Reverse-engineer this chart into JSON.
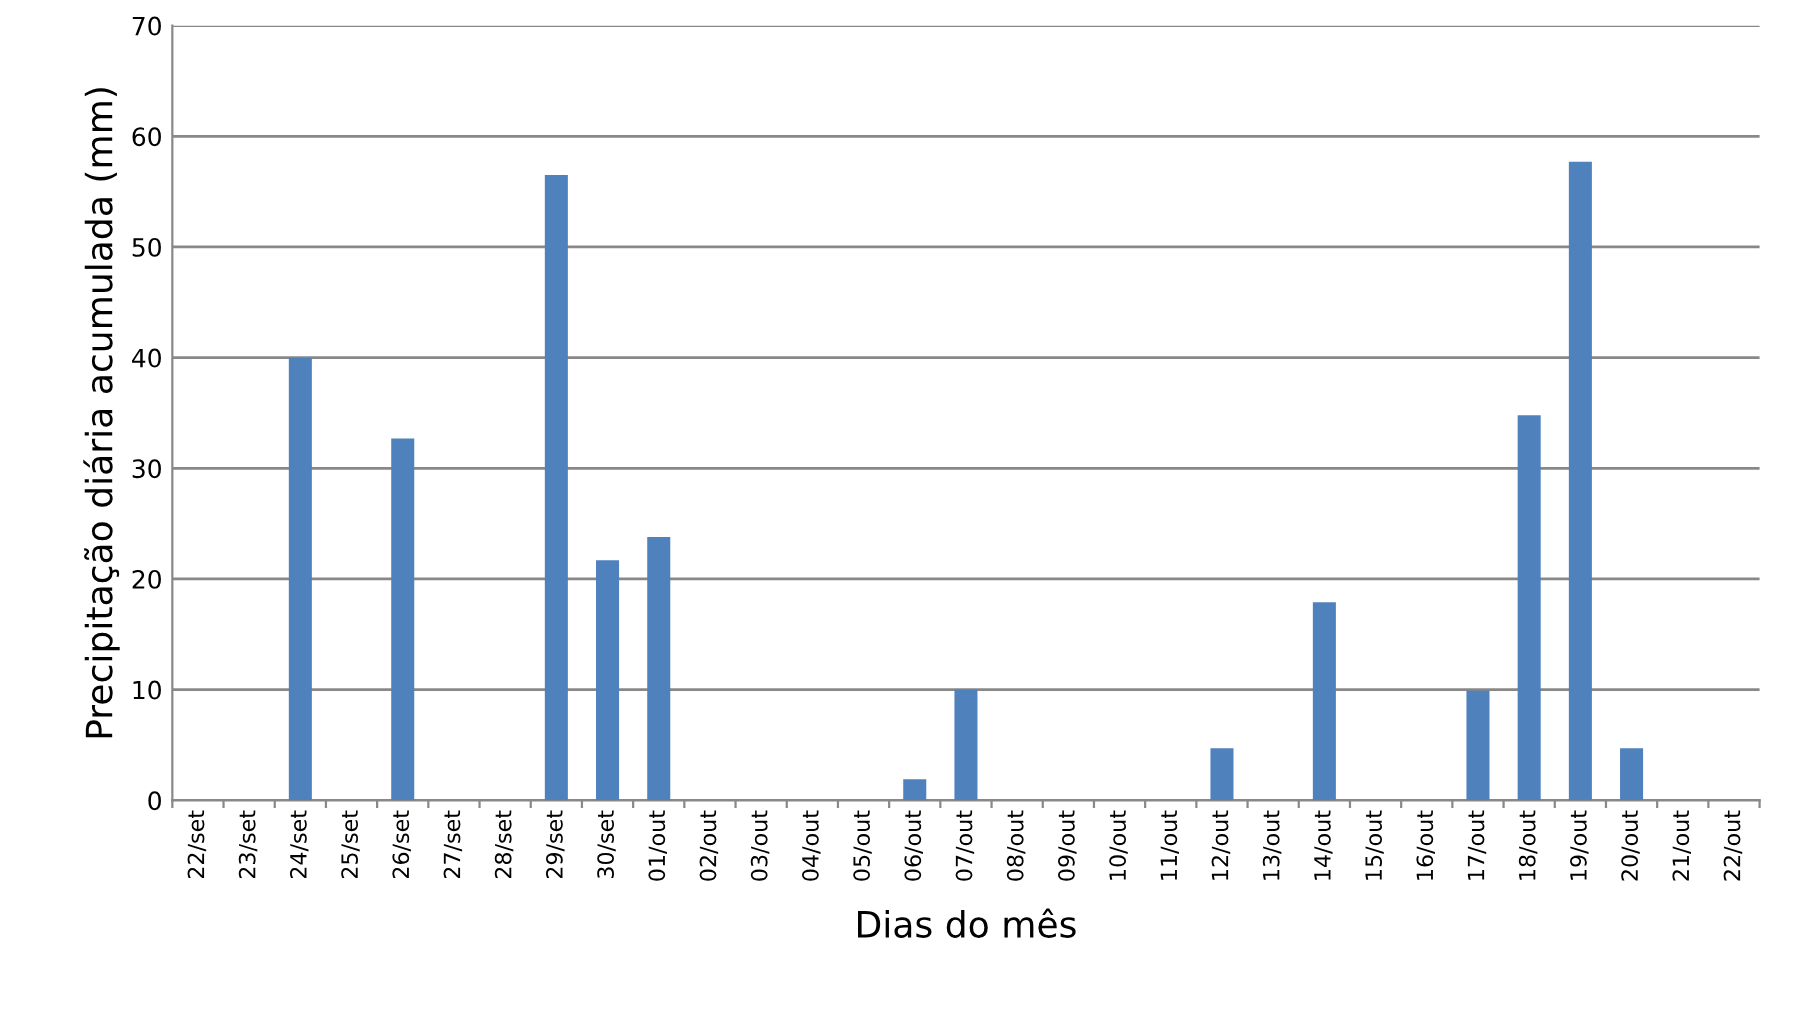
{
  "chart_data": {
    "type": "bar",
    "xlabel": "Dias do mês",
    "ylabel": "Precipitação diária acumulada (mm)",
    "categories": [
      "22/set",
      "23/set",
      "24/set",
      "25/set",
      "26/set",
      "27/set",
      "28/set",
      "29/set",
      "30/set",
      "01/out",
      "02/out",
      "03/out",
      "04/out",
      "05/out",
      "06/out",
      "07/out",
      "08/out",
      "09/out",
      "10/out",
      "11/out",
      "12/out",
      "13/out",
      "14/out",
      "15/out",
      "16/out",
      "17/out",
      "18/out",
      "19/out",
      "20/out",
      "21/out",
      "22/out"
    ],
    "values": [
      0,
      0,
      40,
      0,
      32.7,
      0,
      0,
      56.5,
      21.7,
      23.8,
      0,
      0,
      0,
      0,
      1.9,
      10,
      0,
      0,
      0,
      0,
      4.7,
      0,
      17.9,
      0,
      0,
      9.9,
      34.8,
      57.7,
      4.7,
      0,
      0
    ],
    "color": "#4f81bd",
    "ylim": [
      0,
      70
    ],
    "yticks": [
      0,
      10,
      20,
      30,
      40,
      50,
      60,
      70
    ],
    "grid": "y",
    "legend": false
  }
}
